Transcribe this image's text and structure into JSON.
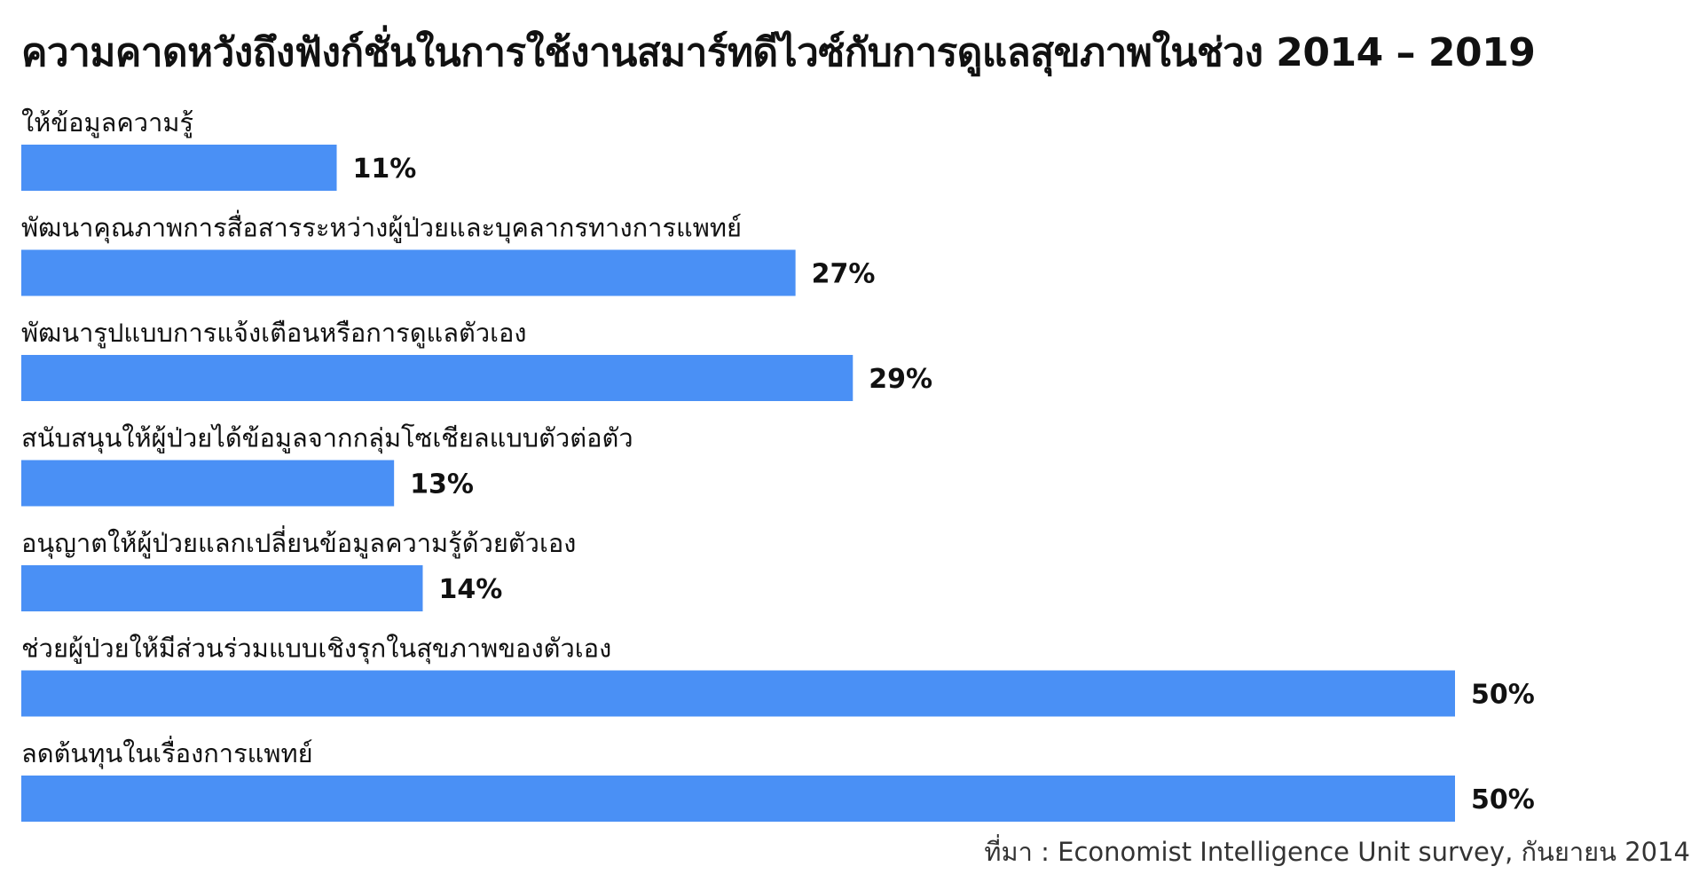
{
  "chart_data": {
    "type": "bar",
    "orientation": "horizontal",
    "title": "ความคาดหวังถึงฟังก์ชั่นในการใช้งานสมาร์ทดีไวซ์กับการดูแลสุขภาพในช่วง 2014 – 2019",
    "categories": [
      "ให้ข้อมูลความรู้",
      "พัฒนาคุณภาพการสื่อสารระหว่างผู้ป่วยและบุคลากรทางการแพทย์",
      "พัฒนารูปแบบการแจ้งเตือนหรือการดูแลตัวเอง",
      "สนับสนุนให้ผู้ป่วยได้ข้อมูลจากกลุ่มโซเชียลแบบตัวต่อตัว",
      "อนุญาตให้ผู้ป่วยแลกเปลี่ยนข้อมูลความรู้ด้วยตัวเอง",
      "ช่วยผู้ป่วยให้มีส่วนร่วมแบบเชิงรุกในสุขภาพของตัวเอง",
      "ลดต้นทุนในเรื่องการแพทย์"
    ],
    "values": [
      11,
      27,
      29,
      13,
      14,
      50,
      50
    ],
    "value_labels": [
      "11%",
      "27%",
      "29%",
      "13%",
      "14%",
      "50%",
      "50%"
    ],
    "unit": "%",
    "xlim": [
      0,
      50
    ],
    "bar_color": "#4a90f5",
    "grid": false,
    "legend": "none",
    "source": "ที่มา : Economist Intelligence Unit survey, กันยายน 2014"
  }
}
